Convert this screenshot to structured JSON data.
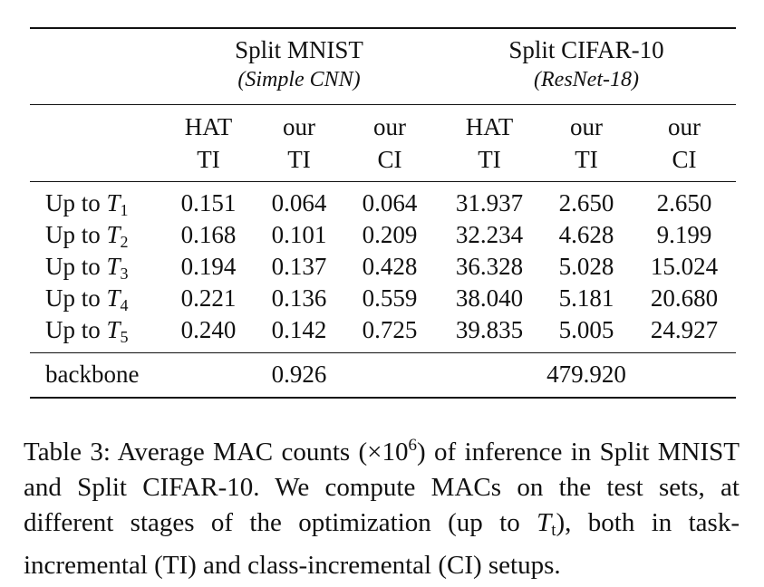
{
  "table": {
    "group_headers": [
      {
        "title": "Split MNIST",
        "subtitle": "(Simple CNN)"
      },
      {
        "title": "Split CIFAR-10",
        "subtitle": "(ResNet-18)"
      }
    ],
    "column_headers": [
      {
        "line1": "HAT",
        "line2": "TI"
      },
      {
        "line1": "our",
        "line2": "TI"
      },
      {
        "line1": "our",
        "line2": "CI"
      },
      {
        "line1": "HAT",
        "line2": "TI"
      },
      {
        "line1": "our",
        "line2": "TI"
      },
      {
        "line1": "our",
        "line2": "CI"
      }
    ],
    "rows": [
      {
        "label": "Up to",
        "var": "T",
        "sub": "1",
        "values": [
          "0.151",
          "0.064",
          "0.064",
          "31.937",
          "2.650",
          "2.650"
        ]
      },
      {
        "label": "Up to",
        "var": "T",
        "sub": "2",
        "values": [
          "0.168",
          "0.101",
          "0.209",
          "32.234",
          "4.628",
          "9.199"
        ]
      },
      {
        "label": "Up to",
        "var": "T",
        "sub": "3",
        "values": [
          "0.194",
          "0.137",
          "0.428",
          "36.328",
          "5.028",
          "15.024"
        ]
      },
      {
        "label": "Up to",
        "var": "T",
        "sub": "4",
        "values": [
          "0.221",
          "0.136",
          "0.559",
          "38.040",
          "5.181",
          "20.680"
        ]
      },
      {
        "label": "Up to",
        "var": "T",
        "sub": "5",
        "values": [
          "0.240",
          "0.142",
          "0.725",
          "39.835",
          "5.005",
          "24.927"
        ]
      }
    ],
    "backbone": {
      "label": "backbone",
      "mnist": "0.926",
      "cifar": "479.920"
    }
  },
  "caption": {
    "part1": "Table 3: Average MAC counts (×10",
    "sup": "6",
    "part2": ") of inference in Split MNIST and Split CIFAR-10. We compute MACs on the test sets, at different stages of the optimization (up to ",
    "var": "T",
    "sub": "t",
    "part3": "), both in task-incremental (TI) and class-incremental (CI) setups."
  }
}
